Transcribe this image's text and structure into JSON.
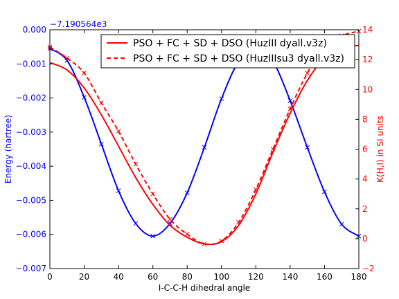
{
  "chart_data": {
    "type": "line",
    "xlabel": "I-C-C-H dihedral angle",
    "xlim": [
      0,
      180
    ],
    "xticks": [
      0,
      20,
      40,
      60,
      80,
      100,
      120,
      140,
      160,
      180
    ],
    "left_axis": {
      "label": "Energy (hartree)",
      "offset_label": "−7.190564e3",
      "ylim": [
        -0.007,
        0.0
      ],
      "ticks": [
        0.0,
        -0.001,
        -0.002,
        -0.003,
        -0.004,
        -0.005,
        -0.006,
        -0.007
      ],
      "tick_labels": [
        "0.000",
        "−0.001",
        "−0.002",
        "−0.003",
        "−0.004",
        "−0.005",
        "−0.006",
        "−0.007"
      ],
      "color": "#0000ff"
    },
    "right_axis": {
      "label": "K(H,I) in SI units",
      "ylim": [
        -2,
        14
      ],
      "ticks": [
        -2,
        0,
        2,
        4,
        6,
        8,
        10,
        12,
        14
      ],
      "tick_labels": [
        "−2",
        "0",
        "2",
        "4",
        "6",
        "8",
        "10",
        "12",
        "14"
      ],
      "color": "#ff0000"
    },
    "legend": {
      "placement": "top-right",
      "entries": [
        {
          "label": "PSO + FC + SD + DSO (HuzIII dyall.v3z)",
          "style": "solid",
          "color": "#ff0000"
        },
        {
          "label": "PSO + FC + SD + DSO (HuzIIIsu3 dyall.v3z)",
          "style": "dashed",
          "color": "#ff0000"
        }
      ]
    },
    "series": [
      {
        "axis": "left",
        "color": "#0000ff",
        "style": "solid+x-markers",
        "x": [
          0,
          10,
          20,
          30,
          40,
          50,
          60,
          70,
          80,
          90,
          100,
          110,
          120,
          130,
          140,
          150,
          160,
          170,
          180
        ],
        "y": [
          -0.00055,
          -0.0009,
          -0.00198,
          -0.00335,
          -0.00472,
          -0.00568,
          -0.00605,
          -0.00568,
          -0.00478,
          -0.00345,
          -0.00202,
          -0.00093,
          -0.00052,
          -0.00093,
          -0.00208,
          -0.00345,
          -0.00475,
          -0.0057,
          -0.00605
        ]
      },
      {
        "axis": "right",
        "color": "#ff0000",
        "style": "solid",
        "x": [
          0,
          10,
          20,
          30,
          40,
          50,
          60,
          70,
          80,
          90,
          100,
          110,
          120,
          130,
          140,
          150,
          160,
          170,
          180
        ],
        "y": [
          11.8,
          11.3,
          10.1,
          8.3,
          6.2,
          4.1,
          2.3,
          0.9,
          0.1,
          -0.35,
          -0.2,
          0.9,
          3.0,
          5.8,
          8.4,
          10.6,
          12.1,
          12.8,
          12.95
        ]
      },
      {
        "axis": "right",
        "color": "#ff0000",
        "style": "dashed+x-markers",
        "x": [
          0,
          10,
          20,
          30,
          40,
          50,
          60,
          70,
          80,
          90,
          100,
          110,
          120,
          130,
          140,
          150,
          160,
          170,
          180
        ],
        "y": [
          12.85,
          12.1,
          11.1,
          9.1,
          7.2,
          5.0,
          3.0,
          1.3,
          0.3,
          -0.35,
          -0.15,
          1.1,
          3.3,
          6.0,
          8.7,
          11.1,
          12.9,
          13.6,
          13.9
        ]
      }
    ]
  }
}
